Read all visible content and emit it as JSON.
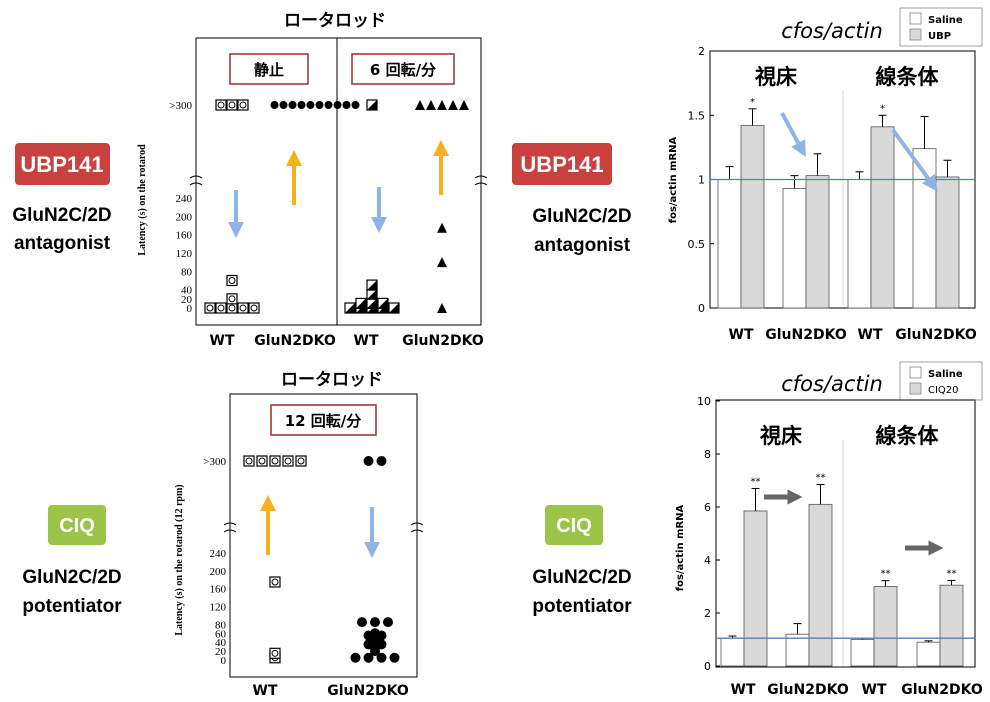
{
  "labels": {
    "rotarod_title": "ロータロッド",
    "cond_static": "静止",
    "cond_6rpm": "6 回転/分",
    "cond_12rpm": "12 回転/分",
    "ylabel_top": "Latency (s) on the rotarod",
    "ylabel_bottom": "Latency (s) on the rotarod (12 rpm)",
    "tick_300": ">300",
    "wt": "WT",
    "ko": "GluN2DKO",
    "thalamus": "視床",
    "striatum": "線条体",
    "chart_title": "cfos/actin",
    "bar_ylabel": "fos/actin mRNA",
    "drug_ubp": "UBP141",
    "drug_ciq": "CIQ",
    "desc_ubp_1": "GluN2C/2D",
    "desc_ubp_2": "antagonist",
    "desc_ciq_1": "GluN2C/2D",
    "desc_ciq_2": "potentiator",
    "legend_saline": "Saline",
    "legend_ubp": "UBP",
    "legend_ciq": "CIQ20",
    "star1": "*",
    "star2": "**"
  },
  "colors": {
    "ubp_badge": "#c8413f",
    "ciq_badge": "#9bc548",
    "blue_arrow": "#8fb4e3",
    "orange_arrow": "#f5b21b",
    "gray_arrow": "#666666",
    "ref_line": "#4f81bd",
    "bar_gray": "#d9d9d9"
  },
  "chart_data": [
    {
      "type": "scatter",
      "title": "ロータロッド",
      "ylabel": "Latency (s) on the rotarod",
      "yticks": [
        "0",
        "20",
        "40",
        "80",
        "120",
        "160",
        "200",
        "240",
        ">300"
      ],
      "panels": [
        {
          "condition": "静止",
          "groups": [
            {
              "name": "WT",
              "marker": "circle-in-square",
              "values": [
                0,
                0,
                0,
                0,
                0,
                20,
                60,
                300,
                300,
                300
              ]
            },
            {
              "name": "GluN2DKO",
              "marker": "filled-circle",
              "values": [
                300,
                300,
                300,
                300,
                300,
                300,
                300,
                300,
                300,
                300
              ]
            }
          ]
        },
        {
          "condition": "6 回転/分",
          "groups": [
            {
              "name": "WT",
              "marker": "half-filled-square",
              "values": [
                0,
                0,
                0,
                0,
                0,
                10,
                10,
                10,
                30,
                50,
                300
              ]
            },
            {
              "name": "GluN2DKO",
              "marker": "filled-triangle",
              "values": [
                0,
                100,
                175,
                300,
                300,
                300,
                300,
                300
              ]
            }
          ]
        }
      ]
    },
    {
      "type": "bar",
      "title": "cfos/actin",
      "ylabel": "fos/actin mRNA",
      "ylim": [
        0,
        2
      ],
      "yticks": [
        "0",
        "0.5",
        "1",
        "1.5",
        "2"
      ],
      "regions": [
        "視床",
        "線条体"
      ],
      "categories": [
        "WT",
        "GluN2DKO",
        "WT",
        "GluN2DKO"
      ],
      "series": [
        {
          "name": "Saline",
          "values": [
            1.0,
            0.93,
            1.0,
            1.24
          ],
          "errors": [
            0.1,
            0.1,
            0.06,
            0.25
          ]
        },
        {
          "name": "UBP",
          "values": [
            1.42,
            1.03,
            1.41,
            1.02
          ],
          "errors": [
            0.13,
            0.17,
            0.09,
            0.13
          ]
        }
      ],
      "significance": [
        "*",
        "",
        "*",
        ""
      ],
      "reference_line": 1.0
    },
    {
      "type": "scatter",
      "title": "ロータロッド",
      "ylabel": "Latency (s) on the rotarod (12 rpm)",
      "yticks": [
        "0",
        "20",
        "40",
        "60",
        "80",
        "120",
        "160",
        "200",
        "240",
        ">300"
      ],
      "panels": [
        {
          "condition": "12 回転/分",
          "groups": [
            {
              "name": "WT",
              "marker": "circle-in-square",
              "values": [
                5,
                15,
                175,
                300,
                300,
                300,
                300,
                300
              ]
            },
            {
              "name": "GluN2DKO",
              "marker": "filled-circle",
              "values": [
                5,
                5,
                5,
                5,
                20,
                30,
                35,
                35,
                40,
                55,
                55,
                60,
                85,
                85,
                85,
                300,
                300
              ]
            }
          ]
        }
      ]
    },
    {
      "type": "bar",
      "title": "cfos/actin",
      "ylabel": "fos/actin mRNA",
      "ylim": [
        0,
        10
      ],
      "yticks": [
        "0",
        "2",
        "4",
        "6",
        "8",
        "10"
      ],
      "regions": [
        "視床",
        "線条体"
      ],
      "categories": [
        "WT",
        "GluN2DKO",
        "WT",
        "GluN2DKO"
      ],
      "series": [
        {
          "name": "Saline",
          "values": [
            1.05,
            1.2,
            1.0,
            0.9
          ],
          "errors": [
            0.08,
            0.4,
            0.05,
            0.05
          ]
        },
        {
          "name": "CIQ20",
          "values": [
            5.85,
            6.1,
            3.0,
            3.05
          ],
          "errors": [
            0.85,
            0.75,
            0.22,
            0.18
          ]
        }
      ],
      "significance": [
        "**",
        "**",
        "**",
        "**"
      ],
      "reference_line": 1.05
    }
  ]
}
